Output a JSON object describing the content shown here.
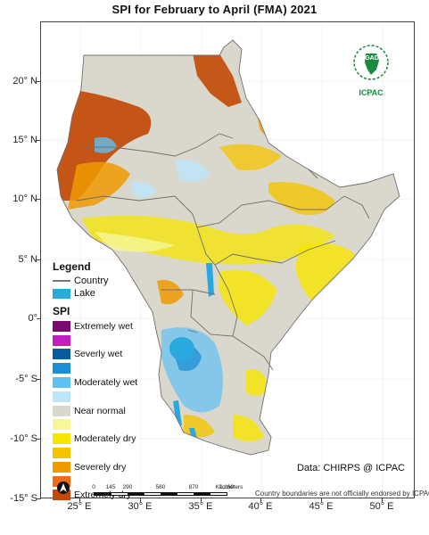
{
  "title": "SPI  for    February to April (FMA) 2021",
  "lat_labels": [
    "20° N",
    "15° N",
    "10° N",
    "5° N",
    "0°",
    "-5° S",
    "-10° S",
    "-15° S"
  ],
  "lon_labels": [
    "25° E",
    "30° E",
    "35° E",
    "40° E",
    "45° E",
    "50° E"
  ],
  "legend": {
    "heading": "Legend",
    "country_label": "Country",
    "lake_label": "Lake",
    "lake_color": "#2aa9e0",
    "country_color": "#777777"
  },
  "spi": {
    "heading": "SPI",
    "classes": [
      {
        "label": "Extremely wet",
        "color": "#7b0a6e"
      },
      {
        "label": "",
        "color": "#c21fc0"
      },
      {
        "label": "Severly wet",
        "color": "#0a5aa0"
      },
      {
        "label": "",
        "color": "#1a8fd6"
      },
      {
        "label": "Moderately wet",
        "color": "#5fc1f3"
      },
      {
        "label": "",
        "color": "#bfe6f6"
      },
      {
        "label": "Near normal",
        "color": "#dad8cc"
      },
      {
        "label": "",
        "color": "#f7f79a"
      },
      {
        "label": "Moderately dry",
        "color": "#f7e600"
      },
      {
        "label": "",
        "color": "#f4c400"
      },
      {
        "label": "Severely dry",
        "color": "#f09a00"
      },
      {
        "label": "",
        "color": "#f06a1a"
      },
      {
        "label": "Extremely dry",
        "color": "#c24a06"
      }
    ]
  },
  "data_source": "Data: CHIRPS @ ICPAC",
  "disclaimer": "Country boundaries are not officially endorsed by ICPAC",
  "scale": {
    "ticks": [
      "0",
      "145",
      "290",
      "580",
      "870",
      "1,160"
    ],
    "unit": "Kilometers"
  },
  "logo": {
    "org1": "IGAD",
    "org2": "ICPAC"
  }
}
